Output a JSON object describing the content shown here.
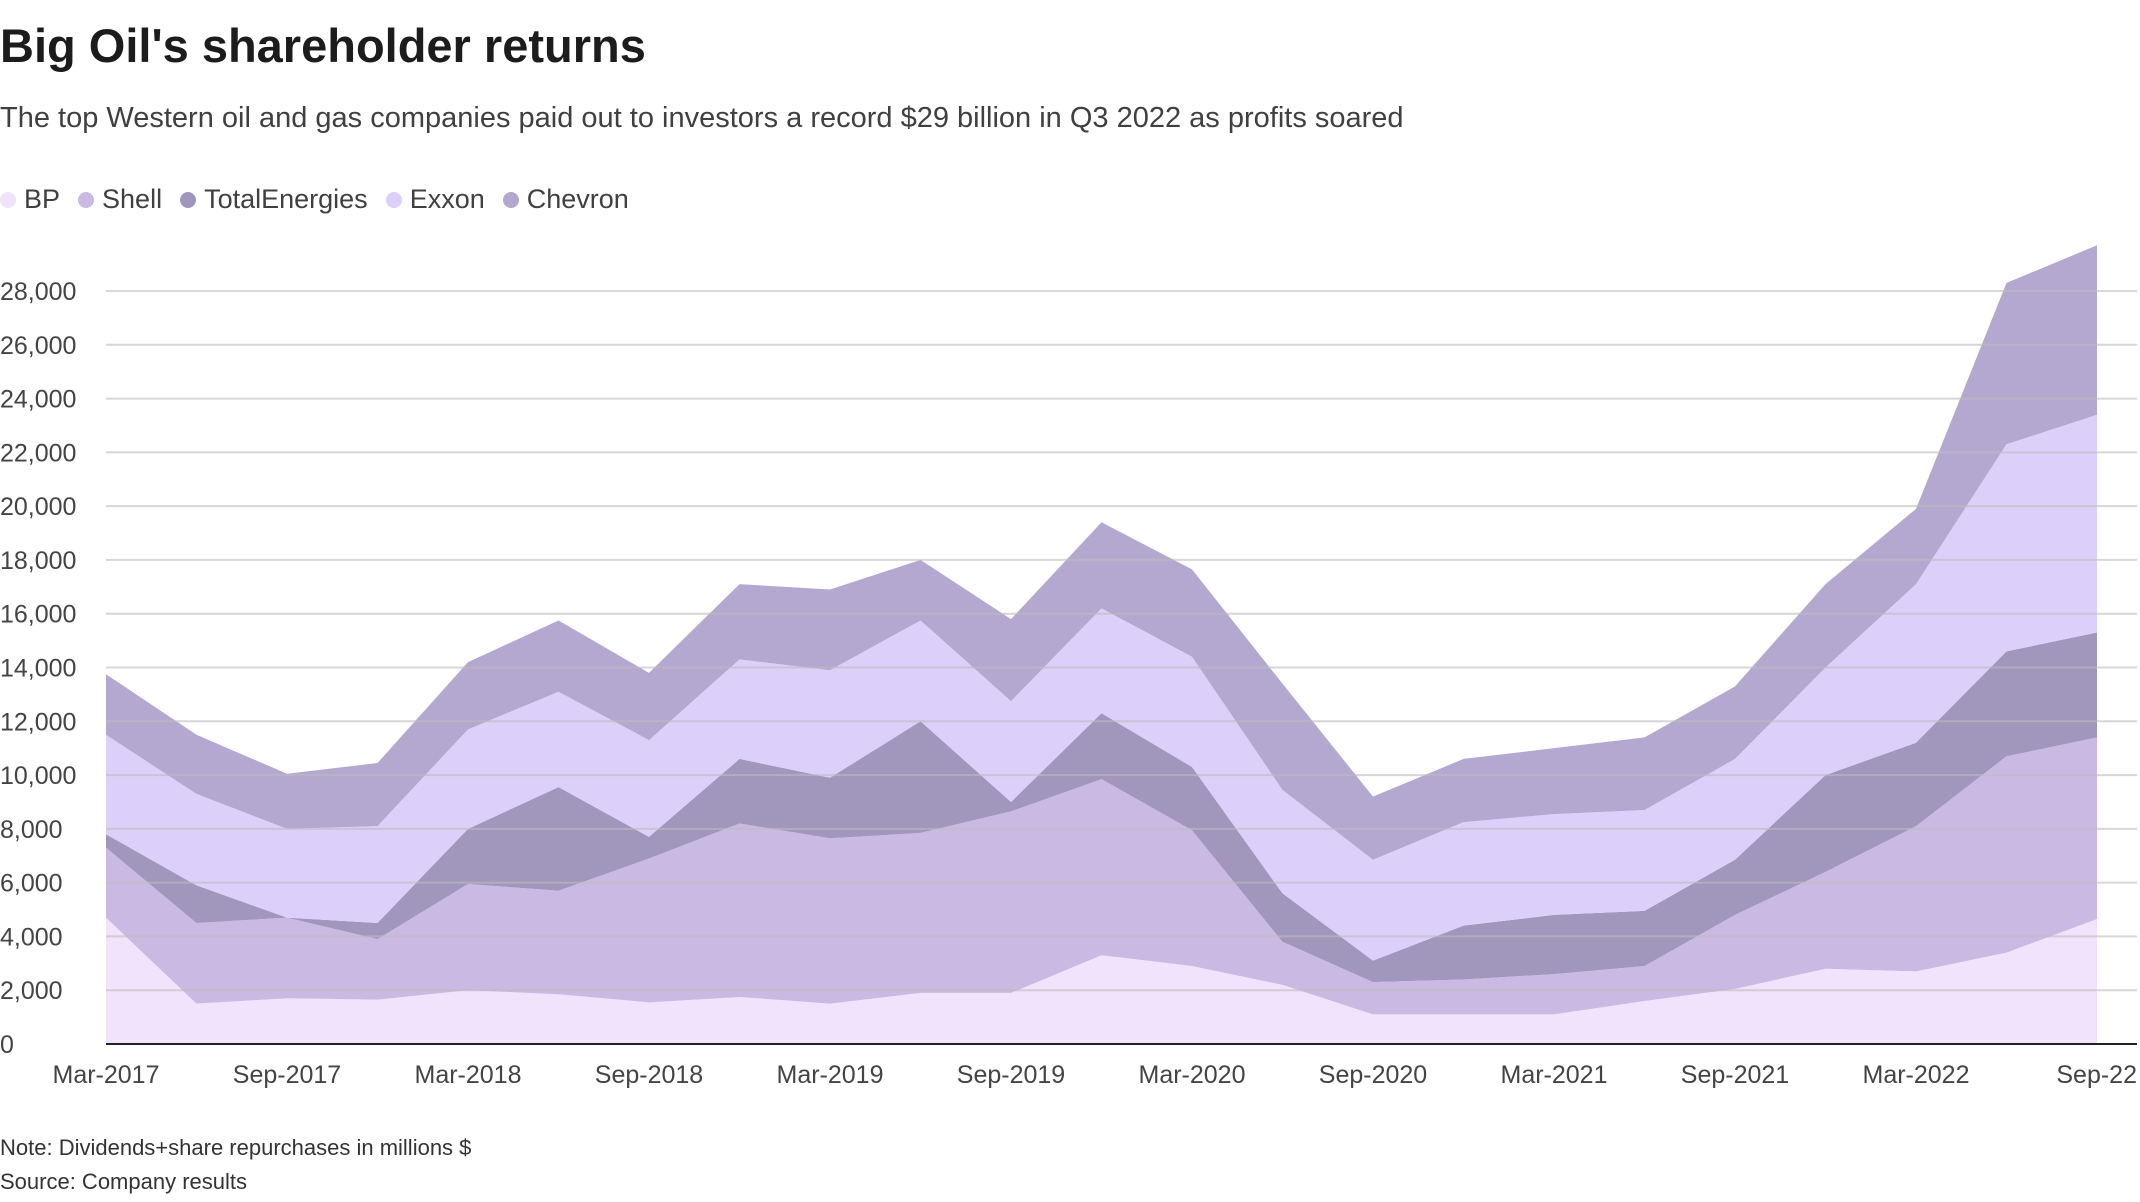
{
  "header": {
    "title": "Big Oil's shareholder returns",
    "subtitle": "The top Western oil and gas companies paid out to investors a record $29 billion in Q3 2022 as profits soared"
  },
  "footer": {
    "note": "Note: Dividends+share repurchases in millions $",
    "source": "Source: Company results"
  },
  "chart_data": {
    "type": "area",
    "stacked": true,
    "title": "Big Oil's shareholder returns",
    "xlabel": "",
    "ylabel": "",
    "ylim": [
      0,
      30000
    ],
    "yticks": [
      0,
      2000,
      4000,
      6000,
      8000,
      10000,
      12000,
      14000,
      16000,
      18000,
      20000,
      22000,
      24000,
      26000,
      28000
    ],
    "ytick_labels": [
      "0",
      "2,000",
      "4,000",
      "6,000",
      "8,000",
      "10,000",
      "12,000",
      "14,000",
      "16,000",
      "18,000",
      "20,000",
      "22,000",
      "24,000",
      "26,000",
      "28,000"
    ],
    "x": [
      "Mar-2017",
      "Jun-2017",
      "Sep-2017",
      "Dec-2017",
      "Mar-2018",
      "Jun-2018",
      "Sep-2018",
      "Dec-2018",
      "Mar-2019",
      "Jun-2019",
      "Sep-2019",
      "Dec-2019",
      "Mar-2020",
      "Jun-2020",
      "Sep-2020",
      "Dec-2020",
      "Mar-2021",
      "Jun-2021",
      "Sep-2021",
      "Dec-2021",
      "Mar-2022",
      "Jun-2022",
      "Sep-22"
    ],
    "xtick_indices": [
      0,
      2,
      4,
      6,
      8,
      10,
      12,
      14,
      16,
      18,
      20,
      22
    ],
    "grid": true,
    "legend_position": "top-left",
    "series": [
      {
        "name": "BP",
        "color": "#f0e3fb",
        "values": [
          4700,
          1500,
          1700,
          1650,
          2000,
          1850,
          1550,
          1750,
          1500,
          1900,
          1900,
          3300,
          2900,
          2200,
          1100,
          1100,
          1100,
          1600,
          2050,
          2800,
          2700,
          3400,
          4650
        ]
      },
      {
        "name": "Shell",
        "color": "#c9b9e3",
        "values": [
          2600,
          3000,
          3000,
          2250,
          3950,
          3850,
          5350,
          6450,
          6150,
          5950,
          6750,
          6550,
          5050,
          1600,
          1200,
          1300,
          1500,
          1300,
          2750,
          3600,
          5400,
          7300,
          6750
        ]
      },
      {
        "name": "TotalEnergies",
        "color": "#a196bb",
        "values": [
          500,
          1400,
          0,
          600,
          2050,
          3850,
          800,
          2400,
          2250,
          4150,
          350,
          2450,
          2350,
          1800,
          800,
          2000,
          2200,
          2050,
          2050,
          3600,
          3100,
          3900,
          3900
        ]
      },
      {
        "name": "Exxon",
        "color": "#dccffa",
        "values": [
          3700,
          3400,
          3300,
          3600,
          3700,
          3550,
          3600,
          3700,
          4000,
          3750,
          3750,
          3900,
          4100,
          3850,
          3750,
          3850,
          3750,
          3750,
          3750,
          4000,
          5900,
          7700,
          8100
        ]
      },
      {
        "name": "Chevron",
        "color": "#b4a8d0",
        "values": [
          2250,
          2200,
          2050,
          2350,
          2500,
          2650,
          2500,
          2800,
          3000,
          2250,
          3050,
          3200,
          3250,
          3950,
          2350,
          2350,
          2450,
          2700,
          2700,
          3100,
          2800,
          6000,
          6300
        ]
      }
    ]
  }
}
